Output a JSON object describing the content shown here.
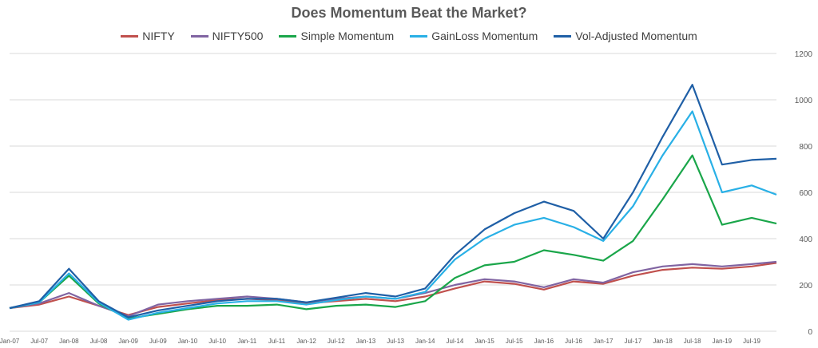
{
  "chart_data": {
    "type": "line",
    "title": "Does Momentum Beat the Market?",
    "xlabel": "",
    "ylabel": "",
    "ylim": [
      0,
      1200
    ],
    "yticks": [
      0,
      200,
      400,
      600,
      800,
      1000,
      1200
    ],
    "y_axis_position": "right",
    "grid": "horizontal",
    "legend_position": "top",
    "x_tick_labels": [
      "Jan-07",
      "Jul-07",
      "Jan-08",
      "Jul-08",
      "Jan-09",
      "Jul-09",
      "Jan-10",
      "Jul-10",
      "Jan-11",
      "Jul-11",
      "Jan-12",
      "Jul-12",
      "Jan-13",
      "Jul-13",
      "Jan-14",
      "Jul-14",
      "Jan-15",
      "Jul-15",
      "Jan-16",
      "Jul-16",
      "Jan-17",
      "Jul-17",
      "Jan-18",
      "Jul-18",
      "Jan-19",
      "Jul-19"
    ],
    "x_range": [
      "Jan-07",
      "Dec-19"
    ],
    "series": [
      {
        "name": "NIFTY",
        "color": "#c0504d",
        "points": [
          [
            "Jan-07",
            100
          ],
          [
            "Jul-07",
            115
          ],
          [
            "Jan-08",
            150
          ],
          [
            "Jul-08",
            110
          ],
          [
            "Jan-09",
            70
          ],
          [
            "Jul-09",
            105
          ],
          [
            "Jan-10",
            120
          ],
          [
            "Jul-10",
            135
          ],
          [
            "Jan-11",
            140
          ],
          [
            "Jul-11",
            135
          ],
          [
            "Jan-12",
            120
          ],
          [
            "Jul-12",
            130
          ],
          [
            "Jan-13",
            140
          ],
          [
            "Jul-13",
            130
          ],
          [
            "Jan-14",
            150
          ],
          [
            "Jul-14",
            185
          ],
          [
            "Jan-15",
            215
          ],
          [
            "Jul-15",
            205
          ],
          [
            "Jan-16",
            180
          ],
          [
            "Jul-16",
            215
          ],
          [
            "Jan-17",
            205
          ],
          [
            "Jul-17",
            240
          ],
          [
            "Jan-18",
            265
          ],
          [
            "Jul-18",
            275
          ],
          [
            "Jan-19",
            270
          ],
          [
            "Jul-19",
            280
          ],
          [
            "Dec-19",
            295
          ]
        ]
      },
      {
        "name": "NIFTY500",
        "color": "#8064a2",
        "points": [
          [
            "Jan-07",
            100
          ],
          [
            "Jul-07",
            120
          ],
          [
            "Jan-08",
            165
          ],
          [
            "Jul-08",
            110
          ],
          [
            "Jan-09",
            65
          ],
          [
            "Jul-09",
            115
          ],
          [
            "Jan-10",
            130
          ],
          [
            "Jul-10",
            140
          ],
          [
            "Jan-11",
            150
          ],
          [
            "Jul-11",
            140
          ],
          [
            "Jan-12",
            125
          ],
          [
            "Jul-12",
            140
          ],
          [
            "Jan-13",
            150
          ],
          [
            "Jul-13",
            140
          ],
          [
            "Jan-14",
            165
          ],
          [
            "Jul-14",
            200
          ],
          [
            "Jan-15",
            225
          ],
          [
            "Jul-15",
            215
          ],
          [
            "Jan-16",
            190
          ],
          [
            "Jul-16",
            225
          ],
          [
            "Jan-17",
            210
          ],
          [
            "Jul-17",
            255
          ],
          [
            "Jan-18",
            280
          ],
          [
            "Jul-18",
            290
          ],
          [
            "Jan-19",
            280
          ],
          [
            "Jul-19",
            290
          ],
          [
            "Dec-19",
            300
          ]
        ]
      },
      {
        "name": "Simple Momentum",
        "color": "#1aa64a",
        "points": [
          [
            "Jan-07",
            100
          ],
          [
            "Jul-07",
            125
          ],
          [
            "Jan-08",
            240
          ],
          [
            "Jul-08",
            120
          ],
          [
            "Jan-09",
            55
          ],
          [
            "Jul-09",
            75
          ],
          [
            "Jan-10",
            95
          ],
          [
            "Jul-10",
            110
          ],
          [
            "Jan-11",
            110
          ],
          [
            "Jul-11",
            115
          ],
          [
            "Jan-12",
            95
          ],
          [
            "Jul-12",
            110
          ],
          [
            "Jan-13",
            115
          ],
          [
            "Jul-13",
            105
          ],
          [
            "Jan-14",
            130
          ],
          [
            "Jul-14",
            230
          ],
          [
            "Jan-15",
            285
          ],
          [
            "Jul-15",
            300
          ],
          [
            "Jan-16",
            350
          ],
          [
            "Jul-16",
            330
          ],
          [
            "Jan-17",
            305
          ],
          [
            "Jul-17",
            390
          ],
          [
            "Jan-18",
            570
          ],
          [
            "Jul-18",
            760
          ],
          [
            "Jan-19",
            460
          ],
          [
            "Jul-19",
            490
          ],
          [
            "Dec-19",
            465
          ]
        ]
      },
      {
        "name": "GainLoss Momentum",
        "color": "#29b0e6",
        "points": [
          [
            "Jan-07",
            100
          ],
          [
            "Jul-07",
            125
          ],
          [
            "Jan-08",
            250
          ],
          [
            "Jul-08",
            125
          ],
          [
            "Jan-09",
            50
          ],
          [
            "Jul-09",
            80
          ],
          [
            "Jan-10",
            100
          ],
          [
            "Jul-10",
            120
          ],
          [
            "Jan-11",
            130
          ],
          [
            "Jul-11",
            130
          ],
          [
            "Jan-12",
            115
          ],
          [
            "Jul-12",
            135
          ],
          [
            "Jan-13",
            150
          ],
          [
            "Jul-13",
            140
          ],
          [
            "Jan-14",
            170
          ],
          [
            "Jul-14",
            310
          ],
          [
            "Jan-15",
            400
          ],
          [
            "Jul-15",
            460
          ],
          [
            "Jan-16",
            490
          ],
          [
            "Jul-16",
            450
          ],
          [
            "Jan-17",
            390
          ],
          [
            "Jul-17",
            540
          ],
          [
            "Jan-18",
            760
          ],
          [
            "Jul-18",
            950
          ],
          [
            "Jan-19",
            600
          ],
          [
            "Jul-19",
            630
          ],
          [
            "Dec-19",
            590
          ]
        ]
      },
      {
        "name": "Vol-Adjusted Momentum",
        "color": "#1f5fa6",
        "points": [
          [
            "Jan-07",
            100
          ],
          [
            "Jul-07",
            130
          ],
          [
            "Jan-08",
            270
          ],
          [
            "Jul-08",
            130
          ],
          [
            "Jan-09",
            60
          ],
          [
            "Jul-09",
            90
          ],
          [
            "Jan-10",
            110
          ],
          [
            "Jul-10",
            130
          ],
          [
            "Jan-11",
            140
          ],
          [
            "Jul-11",
            140
          ],
          [
            "Jan-12",
            125
          ],
          [
            "Jul-12",
            145
          ],
          [
            "Jan-13",
            165
          ],
          [
            "Jul-13",
            150
          ],
          [
            "Jan-14",
            185
          ],
          [
            "Jul-14",
            330
          ],
          [
            "Jan-15",
            440
          ],
          [
            "Jul-15",
            510
          ],
          [
            "Jan-16",
            560
          ],
          [
            "Jul-16",
            520
          ],
          [
            "Jan-17",
            400
          ],
          [
            "Jul-17",
            600
          ],
          [
            "Jan-18",
            840
          ],
          [
            "Jul-18",
            1065
          ],
          [
            "Jan-19",
            720
          ],
          [
            "Jul-19",
            740
          ],
          [
            "Dec-19",
            745
          ]
        ]
      }
    ]
  }
}
